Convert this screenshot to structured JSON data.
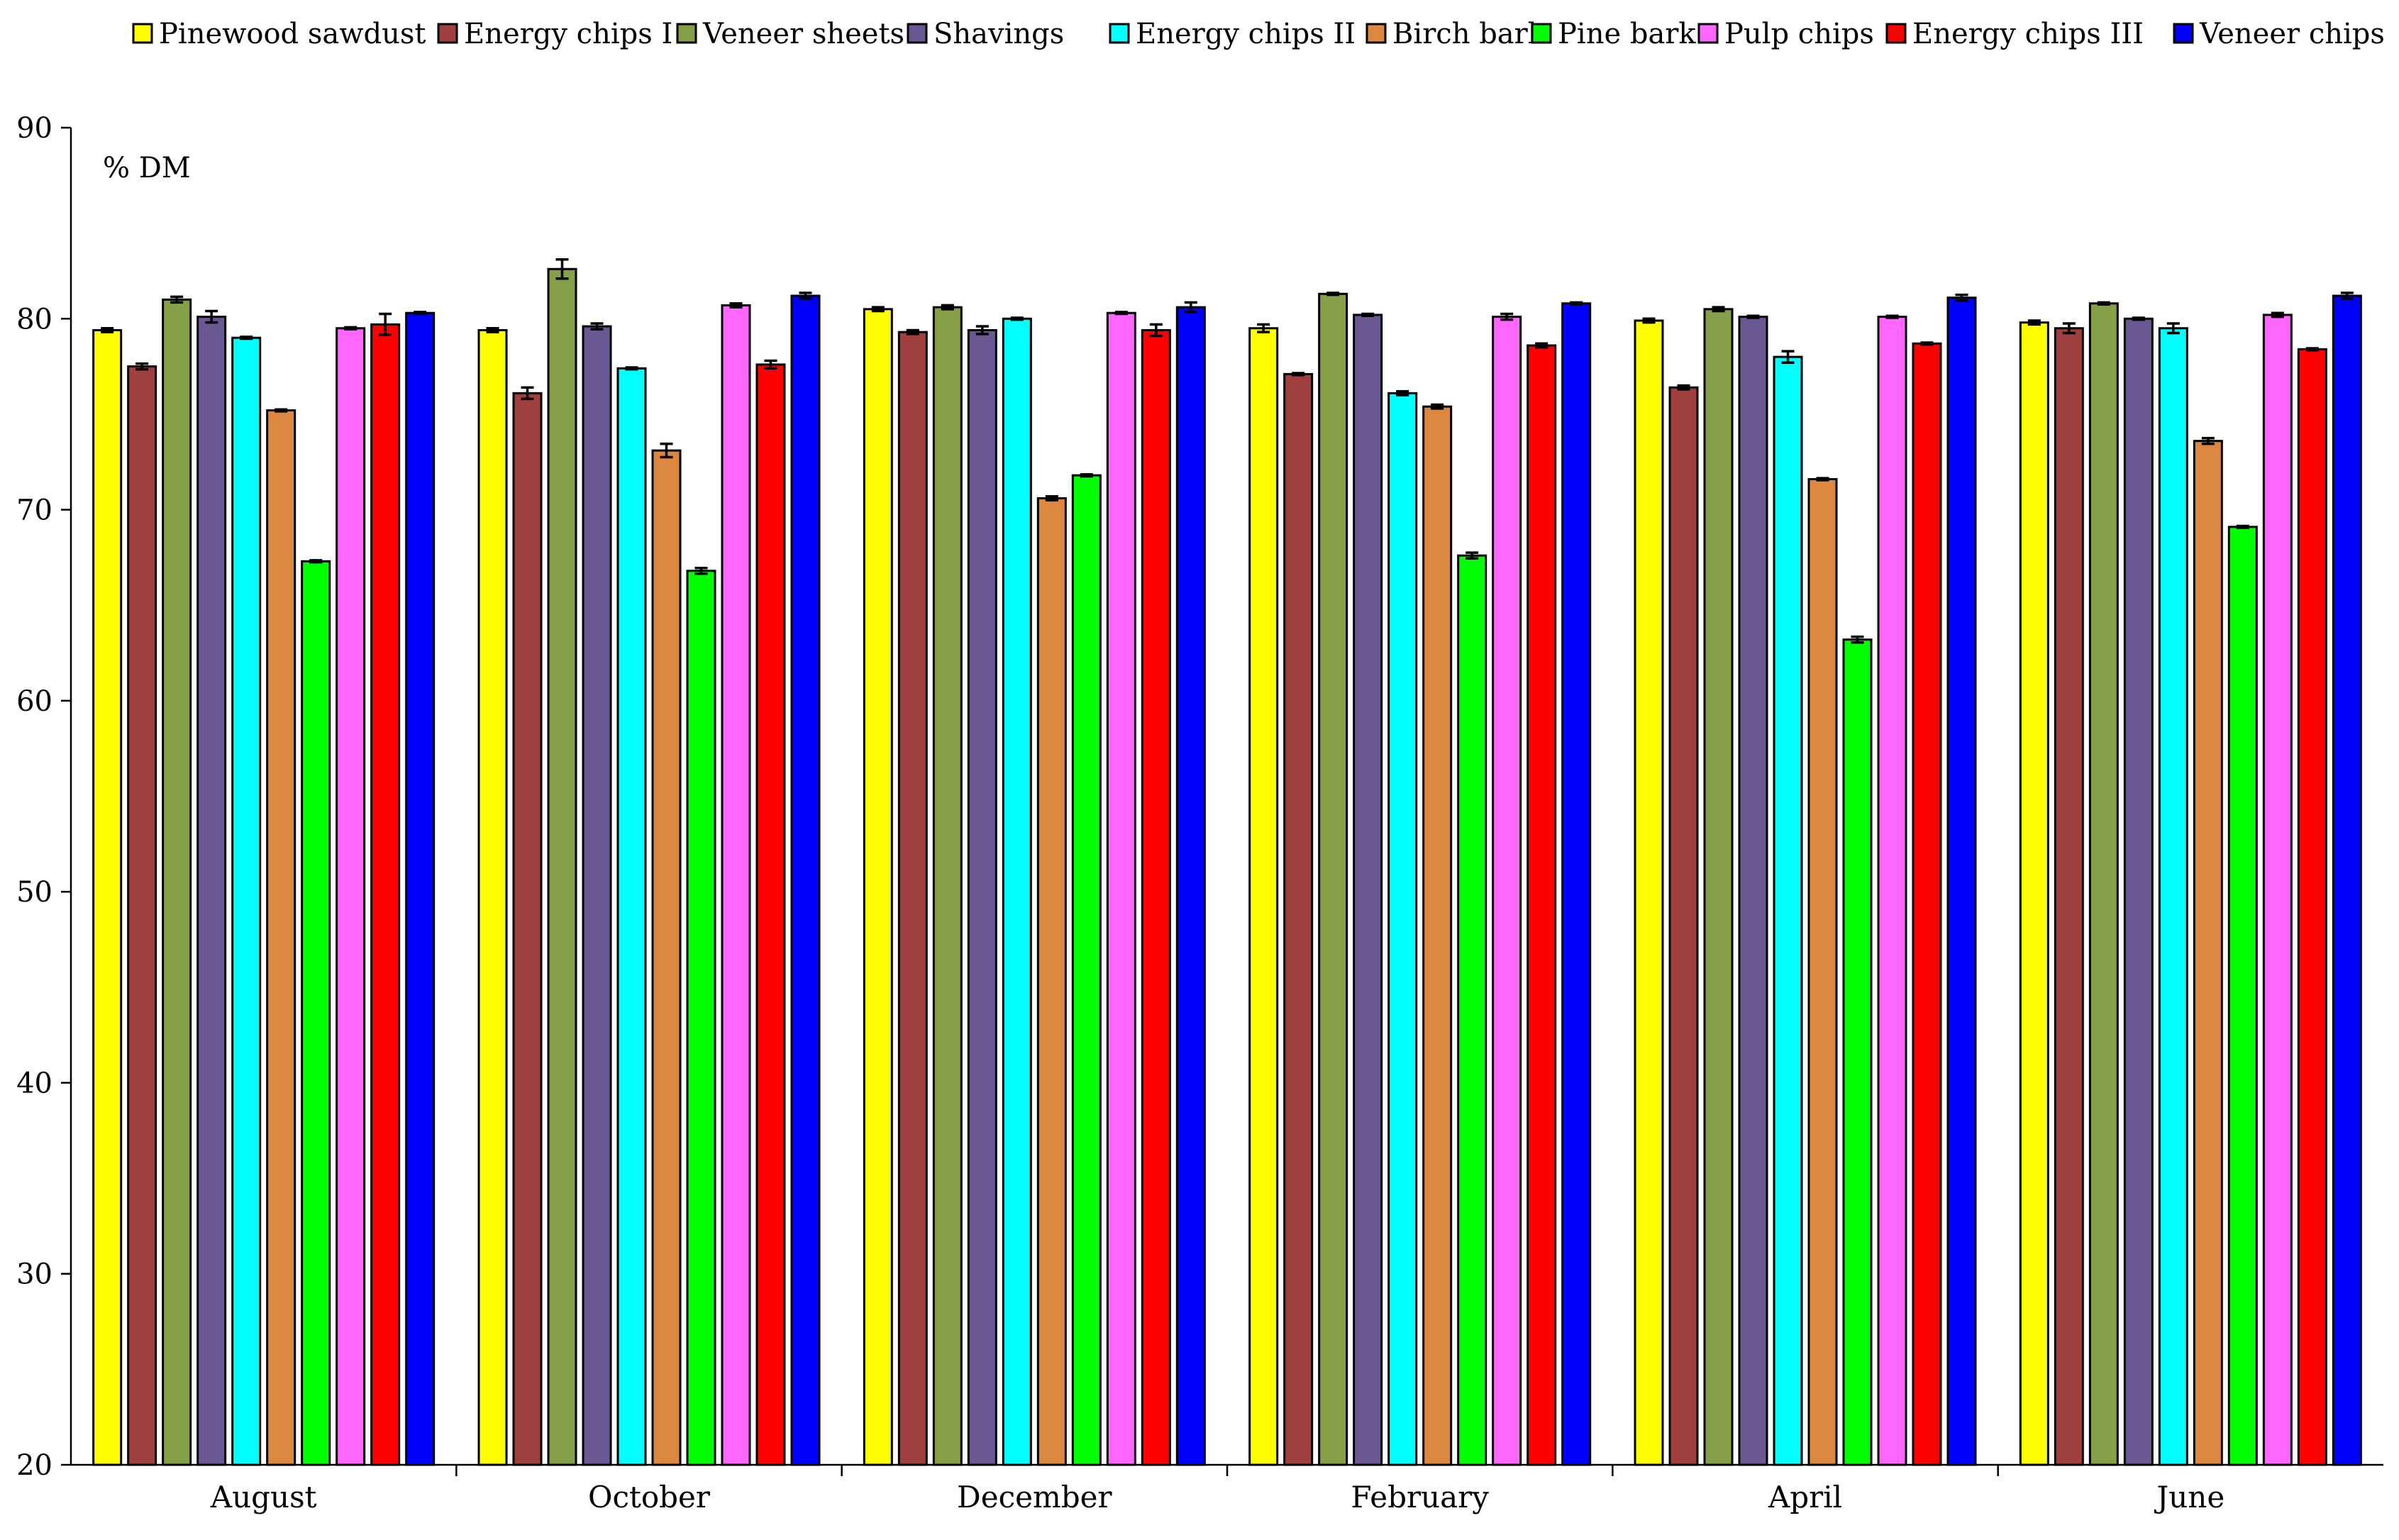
{
  "chart_data": {
    "type": "bar",
    "title": "",
    "xlabel": "",
    "ylabel": "% DM",
    "ylim": [
      20,
      90
    ],
    "yticks": [
      "20",
      "30",
      "40",
      "50",
      "60",
      "70",
      "80",
      "90"
    ],
    "grid": false,
    "legend_position": "top",
    "categories": [
      "August",
      "October",
      "December",
      "February",
      "April",
      "June"
    ],
    "series": [
      {
        "name": "Pinewood sawdust",
        "color": "#ffff00",
        "values": [
          79.4,
          79.4,
          80.5,
          79.5,
          79.9,
          79.8
        ],
        "errors": [
          0.1,
          0.1,
          0.1,
          0.2,
          0.1,
          0.1
        ]
      },
      {
        "name": "Energy chips I",
        "color": "#a0403e",
        "values": [
          77.5,
          76.1,
          79.3,
          77.1,
          76.4,
          79.5
        ],
        "errors": [
          0.15,
          0.3,
          0.1,
          0.05,
          0.1,
          0.25
        ]
      },
      {
        "name": "Veneer sheets",
        "color": "#86a048",
        "values": [
          81.0,
          82.6,
          80.6,
          81.3,
          80.5,
          80.8
        ],
        "errors": [
          0.15,
          0.5,
          0.1,
          0.05,
          0.1,
          0.05
        ]
      },
      {
        "name": "Shavings",
        "color": "#6a5895",
        "values": [
          80.1,
          79.6,
          79.4,
          80.2,
          80.1,
          80.0
        ],
        "errors": [
          0.3,
          0.15,
          0.2,
          0.05,
          0.05,
          0.05
        ]
      },
      {
        "name": "Energy chips II",
        "color": "#00ffff",
        "values": [
          79.0,
          77.4,
          80.0,
          76.1,
          78.0,
          79.5
        ],
        "errors": [
          0.05,
          0.05,
          0.05,
          0.1,
          0.3,
          0.25
        ]
      },
      {
        "name": "Birch bark",
        "color": "#dd8840",
        "values": [
          75.2,
          73.1,
          70.6,
          75.4,
          71.6,
          73.6
        ],
        "errors": [
          0.05,
          0.35,
          0.1,
          0.1,
          0.05,
          0.15
        ]
      },
      {
        "name": "Pine bark",
        "color": "#00ff00",
        "values": [
          67.3,
          66.8,
          71.8,
          67.6,
          63.2,
          69.1
        ],
        "errors": [
          0.05,
          0.15,
          0.05,
          0.15,
          0.15,
          0.05
        ]
      },
      {
        "name": "Pulp chips",
        "color": "#ff66ff",
        "values": [
          79.5,
          80.7,
          80.3,
          80.1,
          80.1,
          80.2
        ],
        "errors": [
          0.05,
          0.1,
          0.05,
          0.15,
          0.05,
          0.1
        ]
      },
      {
        "name": "Energy chips III",
        "color": "#ff0000",
        "values": [
          79.7,
          77.6,
          79.4,
          78.6,
          78.7,
          78.4
        ],
        "errors": [
          0.55,
          0.2,
          0.3,
          0.1,
          0.05,
          0.05
        ]
      },
      {
        "name": "Veneer chips",
        "color": "#0000ff",
        "values": [
          80.3,
          81.2,
          80.6,
          80.8,
          81.1,
          81.2
        ],
        "errors": [
          0.05,
          0.15,
          0.25,
          0.05,
          0.15,
          0.15
        ]
      }
    ]
  }
}
